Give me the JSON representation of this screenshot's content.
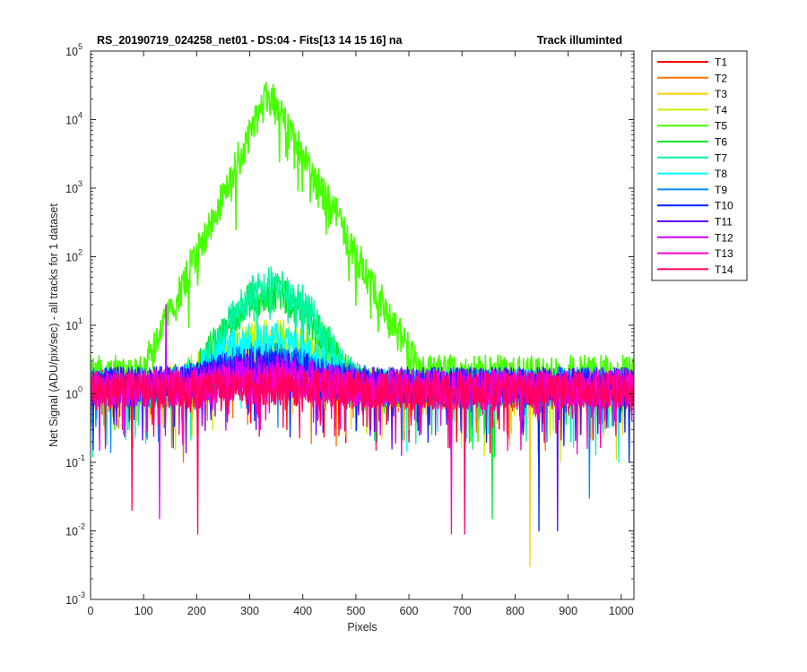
{
  "chart_data": {
    "type": "line",
    "title": "RS_20190719_024258_net01 - DS:04 - Fits[13  14  15  16]   na",
    "title_right": "Track illuminted",
    "xlabel": "Pixels",
    "ylabel": "Net Signal (ADU/pix/sec) - all tracks for 1 dataset",
    "xlim": [
      0,
      1024
    ],
    "ylim": [
      0.001,
      100000
    ],
    "y_scale": "log",
    "grid": false,
    "legend_position": "outside-right",
    "x_ticks": [
      {
        "value": 0,
        "label": "0"
      },
      {
        "value": 100,
        "label": "100"
      },
      {
        "value": 200,
        "label": "200"
      },
      {
        "value": 300,
        "label": "300"
      },
      {
        "value": 400,
        "label": "400"
      },
      {
        "value": 500,
        "label": "500"
      },
      {
        "value": 600,
        "label": "600"
      },
      {
        "value": 700,
        "label": "700"
      },
      {
        "value": 800,
        "label": "800"
      },
      {
        "value": 900,
        "label": "900"
      },
      {
        "value": 1000,
        "label": "1000"
      }
    ],
    "y_ticks": [
      {
        "value": 0.001,
        "exp": "-3"
      },
      {
        "value": 0.01,
        "exp": "-2"
      },
      {
        "value": 0.1,
        "exp": "-1"
      },
      {
        "value": 1,
        "exp": "0"
      },
      {
        "value": 10,
        "exp": "1"
      },
      {
        "value": 100,
        "exp": "2"
      },
      {
        "value": 1000,
        "exp": "3"
      },
      {
        "value": 10000,
        "exp": "4"
      },
      {
        "value": 100000,
        "exp": "5"
      }
    ],
    "series": [
      {
        "name": "T1",
        "color": "#ff0000",
        "baseline": 1.2,
        "peak": 2.5,
        "peak_center": 330,
        "peak_width": 60,
        "dips": [
          [
            370,
            0.3
          ],
          [
            690,
            0.2
          ]
        ]
      },
      {
        "name": "T2",
        "color": "#ff7300",
        "baseline": 1.2,
        "peak": 3.5,
        "peak_center": 330,
        "peak_width": 60,
        "dips": [
          [
            175,
            0.1
          ],
          [
            600,
            0.3
          ]
        ]
      },
      {
        "name": "T3",
        "color": "#ffd000",
        "baseline": 1.2,
        "peak": 5,
        "peak_center": 330,
        "peak_width": 65,
        "dips": [
          [
            828,
            0.003
          ],
          [
            480,
            0.25
          ]
        ]
      },
      {
        "name": "T4",
        "color": "#c6f100",
        "baseline": 1.2,
        "peak": 7,
        "peak_center": 330,
        "peak_width": 70,
        "dips": [
          [
            885,
            0.1
          ],
          [
            230,
            0.3
          ]
        ]
      },
      {
        "name": "T5",
        "color": "#48ff00",
        "baseline": 1.3,
        "peak": 24000,
        "peak_center": 335,
        "peak_width": 22,
        "dips": [
          [
            730,
            0.2
          ],
          [
            45,
            0.3
          ]
        ]
      },
      {
        "name": "T6",
        "color": "#00e62e",
        "baseline": 1.2,
        "peak": 28,
        "peak_center": 340,
        "peak_width": 55,
        "dips": [
          [
            757,
            0.015
          ],
          [
            540,
            0.2
          ]
        ]
      },
      {
        "name": "T7",
        "color": "#00f5a0",
        "baseline": 1.2,
        "peak": 38,
        "peak_center": 345,
        "peak_width": 50,
        "dips": [
          [
            905,
            0.2
          ],
          [
            70,
            0.3
          ]
        ]
      },
      {
        "name": "T8",
        "color": "#00ffff",
        "baseline": 1.2,
        "peak": 6,
        "peak_center": 330,
        "peak_width": 70,
        "dips": [
          [
            1024,
            0.003
          ],
          [
            995,
            0.1
          ]
        ]
      },
      {
        "name": "T9",
        "color": "#008cff",
        "baseline": 1.3,
        "peak": 3,
        "peak_center": 330,
        "peak_width": 80,
        "dips": [
          [
            940,
            0.03
          ],
          [
            860,
            0.2
          ]
        ]
      },
      {
        "name": "T10",
        "color": "#0023ff",
        "baseline": 1.3,
        "peak": 2.5,
        "peak_center": 330,
        "peak_width": 80,
        "dips": [
          [
            845,
            0.01
          ],
          [
            1015,
            0.1
          ]
        ]
      },
      {
        "name": "T11",
        "color": "#5a00ff",
        "baseline": 1.3,
        "peak": 2.2,
        "peak_center": 330,
        "peak_width": 80,
        "dips": [
          [
            880,
            0.01
          ],
          [
            620,
            0.25
          ]
        ]
      },
      {
        "name": "T12",
        "color": "#d000ff",
        "baseline": 1.2,
        "peak": 2,
        "peak_center": 330,
        "peak_width": 80,
        "dips": [
          [
            130,
            0.015
          ],
          [
            650,
            0.25
          ]
        ],
        "spikes": [
          [
            142,
            20
          ]
        ]
      },
      {
        "name": "T13",
        "color": "#ff00c5",
        "baseline": 1.2,
        "peak": 1.5,
        "peak_center": 330,
        "peak_width": 80,
        "dips": [
          [
            680,
            0.009
          ],
          [
            320,
            0.3
          ]
        ]
      },
      {
        "name": "T14",
        "color": "#ff0060",
        "baseline": 1.1,
        "peak": 1.3,
        "peak_center": 330,
        "peak_width": 80,
        "dips": [
          [
            78,
            0.02
          ],
          [
            202,
            0.009
          ],
          [
            705,
            0.009
          ]
        ]
      }
    ]
  }
}
